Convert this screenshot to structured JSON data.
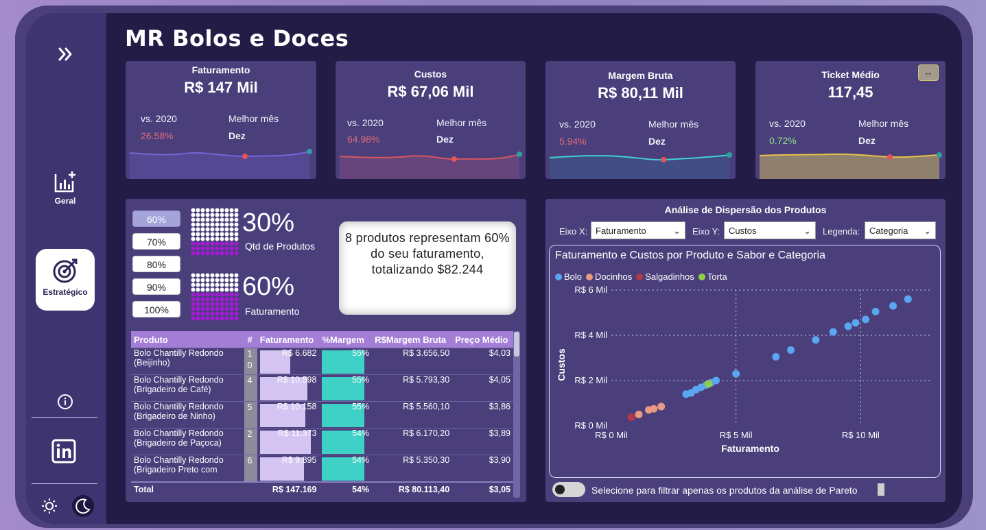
{
  "app": {
    "title": "MR Bolos e Doces"
  },
  "sidebar": {
    "items": [
      {
        "label": "Geral",
        "icon": "chart-plus-icon"
      },
      {
        "label": "Estratégico",
        "icon": "target-icon",
        "active": true
      }
    ]
  },
  "kpis": [
    {
      "title": "Faturamento",
      "value": "R$ 147 Mil",
      "vs_label": "vs. 2020",
      "vs_value": "26.58%",
      "vs_color": "#e06a78",
      "best_label": "Melhor mês",
      "best_value": "Dez",
      "line_color": "#7b62d6"
    },
    {
      "title": "Custos",
      "value": "R$ 67,06 Mil",
      "vs_label": "vs. 2020",
      "vs_value": "64.98%",
      "vs_color": "#e06a78",
      "best_label": "Melhor mês",
      "best_value": "Dez",
      "line_color": "#d8545f"
    },
    {
      "title": "Margem Bruta",
      "value": "R$ 80,11 Mil",
      "vs_label": "vs. 2020",
      "vs_value": "5.94%",
      "vs_color": "#e06a78",
      "best_label": "Melhor mês",
      "best_value": "Dez",
      "line_color": "#42d1cf"
    },
    {
      "title": "Ticket Médio",
      "value": "117,45",
      "vs_label": "vs. 2020",
      "vs_value": "0.72%",
      "vs_color": "#8fe08c",
      "best_label": "Melhor mês",
      "best_value": "Dez",
      "line_color": "#e8c24a"
    }
  ],
  "pareto": {
    "buttons": [
      "60%",
      "70%",
      "80%",
      "90%",
      "100%"
    ],
    "selected": "60%",
    "products_pct": "30%",
    "products_label": "Qtd de Produtos",
    "revenue_pct": "60%",
    "revenue_label": "Faturamento",
    "summary": "8 produtos representam 60% do seu faturamento, totalizando $82.244"
  },
  "table": {
    "headers": [
      "Produto",
      "#",
      "Faturamento",
      "%Margem",
      "R$Margem Bruta",
      "Preço Médio"
    ],
    "rows": [
      {
        "produto": "Bolo Chantilly Redondo (Beijinho)",
        "rank": "10",
        "faturamento": "R$ 6.682",
        "fat_frac": 0.59,
        "margem_pct": "55%",
        "margem_bruta": "R$ 3.656,50",
        "preco": "$4,03"
      },
      {
        "produto": "Bolo Chantilly Redondo (Brigadeiro de Café)",
        "rank": "4",
        "faturamento": "R$ 10.598",
        "fat_frac": 0.93,
        "margem_pct": "55%",
        "margem_bruta": "R$ 5.793,30",
        "preco": "$4,05"
      },
      {
        "produto": "Bolo Chantilly Redondo (Brigadeiro de Ninho)",
        "rank": "5",
        "faturamento": "R$ 10.158",
        "fat_frac": 0.89,
        "margem_pct": "55%",
        "margem_bruta": "R$ 5.560,10",
        "preco": "$3,86"
      },
      {
        "produto": "Bolo Chantilly Redondo (Brigadeiro de Paçoca)",
        "rank": "2",
        "faturamento": "R$ 11.373",
        "fat_frac": 1.0,
        "margem_pct": "54%",
        "margem_bruta": "R$ 6.170,20",
        "preco": "$3,89"
      },
      {
        "produto": "Bolo Chantilly Redondo (Brigadeiro Preto com",
        "rank": "6",
        "faturamento": "R$ 9.895",
        "fat_frac": 0.87,
        "margem_pct": "54%",
        "margem_bruta": "R$ 5.350,30",
        "preco": "$3,90"
      }
    ],
    "total": {
      "label": "Total",
      "faturamento": "R$ 147.169",
      "margem_pct": "54%",
      "margem_bruta": "R$ 80.113,40",
      "preco": "$3,05"
    }
  },
  "scatter_panel": {
    "title": "Análise de Dispersão dos Produtos",
    "x_label": "Eixo X:",
    "x_value": "Faturamento",
    "y_label": "Eixo Y:",
    "y_value": "Custos",
    "legend_label": "Legenda:",
    "legend_value": "Categoria",
    "toggle_label": "Selecione para filtrar apenas os produtos da análise de Pareto"
  },
  "chart_data": {
    "type": "scatter",
    "title": "Faturamento e Custos por Produto e Sabor e Categoria",
    "xlabel": "Faturamento",
    "ylabel": "Custos",
    "xlim": [
      0,
      12800
    ],
    "ylim": [
      0,
      6000
    ],
    "x_ticks": [
      "R$ 0 Mil",
      "R$ 5 Mil",
      "R$ 10 Mil"
    ],
    "x_tick_values": [
      0,
      5000,
      10000
    ],
    "y_ticks": [
      "R$ 0 Mil",
      "R$ 2 Mil",
      "R$ 4 Mil",
      "R$ 6 Mil"
    ],
    "y_tick_values": [
      0,
      2000,
      4000,
      6000
    ],
    "grid": true,
    "legend_position": "top-left",
    "series": [
      {
        "name": "Bolo",
        "color": "#5aa6f0",
        "points": [
          [
            3000,
            1400
          ],
          [
            3200,
            1450
          ],
          [
            3400,
            1600
          ],
          [
            3600,
            1700
          ],
          [
            3800,
            1800
          ],
          [
            4000,
            1900
          ],
          [
            4200,
            2000
          ],
          [
            5000,
            2300
          ],
          [
            6600,
            3050
          ],
          [
            7200,
            3350
          ],
          [
            8200,
            3800
          ],
          [
            8900,
            4150
          ],
          [
            9500,
            4400
          ],
          [
            9800,
            4550
          ],
          [
            10200,
            4700
          ],
          [
            10600,
            5050
          ],
          [
            11300,
            5300
          ],
          [
            11900,
            5600
          ]
        ]
      },
      {
        "name": "Docinhos",
        "color": "#e89a83",
        "points": [
          [
            1100,
            500
          ],
          [
            1500,
            700
          ],
          [
            1700,
            750
          ],
          [
            2000,
            850
          ]
        ]
      },
      {
        "name": "Salgadinhos",
        "color": "#b03a4a",
        "points": [
          [
            800,
            380
          ]
        ]
      },
      {
        "name": "Torta",
        "color": "#8fd046",
        "points": [
          [
            3900,
            1850
          ]
        ]
      }
    ]
  }
}
